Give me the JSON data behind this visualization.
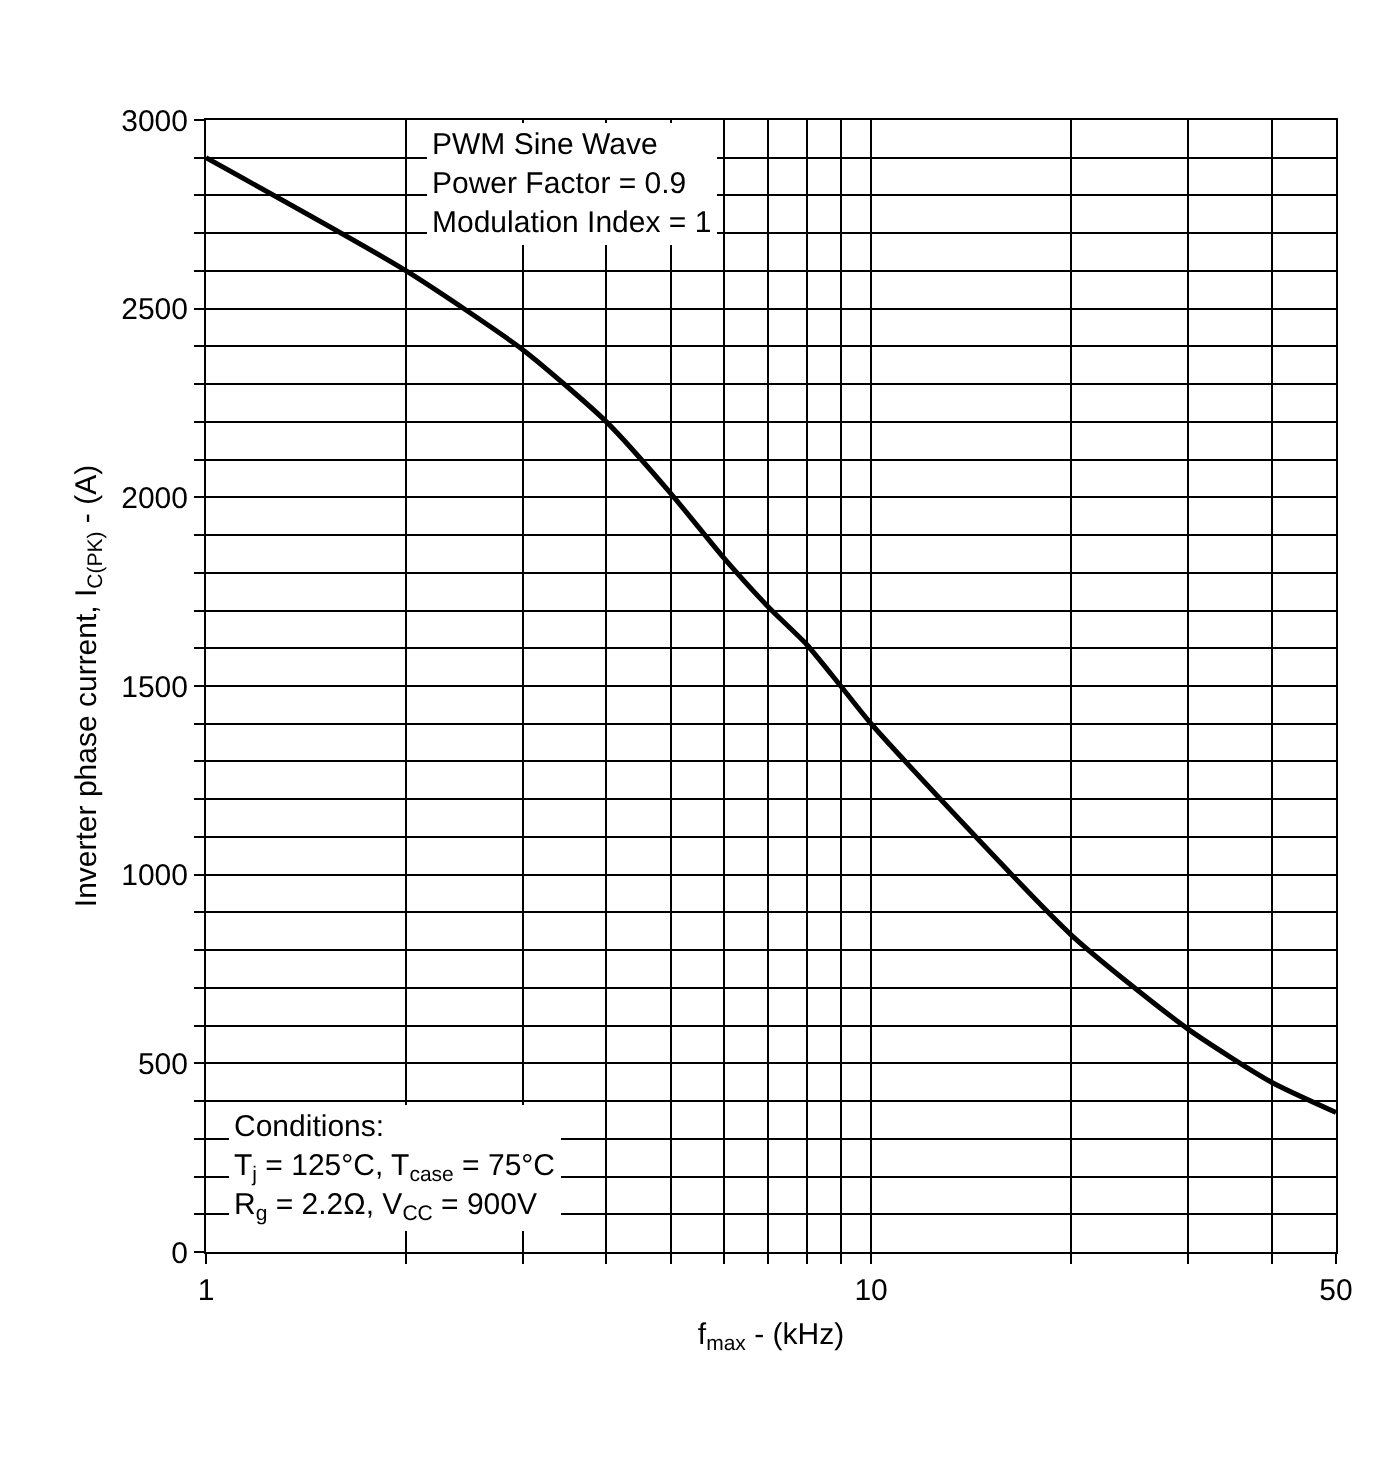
{
  "chart_data": {
    "type": "line",
    "xlabel": "f$_{max}$ - (kHz)",
    "ylabel": "Inverter phase current, I$_{C(PK)}$ - (A)",
    "annotations": [
      "PWM Sine Wave\nPower Factor = 0.9\nModulation Index = 1",
      "Conditions:\nT$_{j}$ = 125°C, T$_{case}$ = 75°C\nR$_{g}$ = 2.2Ω, V$_{CC}$ = 900V"
    ],
    "x": [
      1,
      2,
      3,
      4,
      5,
      6,
      7,
      8,
      9,
      10,
      20,
      30,
      40,
      50
    ],
    "series": [
      {
        "color": "#000000",
        "values": [
          2900,
          2600,
          2390,
          2200,
          2010,
          1840,
          1710,
          1610,
          1500,
          1400,
          840,
          590,
          450,
          370
        ]
      }
    ],
    "log": "x",
    "xlim": [
      1,
      50
    ],
    "xticks": [
      1,
      {
        "value": 2,
        "label": null
      },
      {
        "value": 3,
        "label": null
      },
      {
        "value": 4,
        "label": null
      },
      {
        "value": 5,
        "label": null
      },
      {
        "value": 6,
        "label": null
      },
      {
        "value": 7,
        "label": null
      },
      {
        "value": 8,
        "label": null
      },
      {
        "value": 9,
        "label": null
      },
      10,
      {
        "value": 20,
        "label": null
      },
      {
        "value": 30,
        "label": null
      },
      {
        "value": 40,
        "label": null
      },
      50
    ],
    "ylim": [
      0,
      3000
    ],
    "yticks": [
      0,
      {
        "value": 100,
        "label": null
      },
      {
        "value": 200,
        "label": null
      },
      {
        "value": 300,
        "label": null
      },
      {
        "value": 400,
        "label": null
      },
      500,
      {
        "value": 600,
        "label": null
      },
      {
        "value": 700,
        "label": null
      },
      {
        "value": 800,
        "label": null
      },
      {
        "value": 900,
        "label": null
      },
      1000,
      {
        "value": 1100,
        "label": null
      },
      {
        "value": 1200,
        "label": null
      },
      {
        "value": 1300,
        "label": null
      },
      {
        "value": 1400,
        "label": null
      },
      1500,
      {
        "value": 1600,
        "label": null
      },
      {
        "value": 1700,
        "label": null
      },
      {
        "value": 1800,
        "label": null
      },
      {
        "value": 1900,
        "label": null
      },
      2000,
      {
        "value": 2100,
        "label": null
      },
      {
        "value": 2200,
        "label": null
      },
      {
        "value": 2300,
        "label": null
      },
      {
        "value": 2400,
        "label": null
      },
      2500,
      {
        "value": 2600,
        "label": null
      },
      {
        "value": 2700,
        "label": null
      },
      {
        "value": 2800,
        "label": null
      },
      {
        "value": 2900,
        "label": null
      },
      3000
    ],
    "grid": true,
    "marker": "none",
    "line_style": "solid"
  }
}
